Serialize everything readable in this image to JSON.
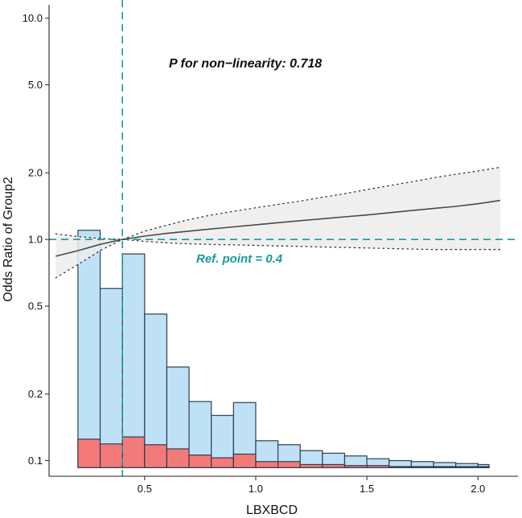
{
  "chart_data": {
    "type": "restricted-cubic-spline-with-histogram",
    "xlabel": "LBXBCD",
    "ylabel": "Odds Ratio of Group2",
    "xlim": [
      0.07,
      2.18
    ],
    "ylim_log": [
      0.085,
      11.5
    ],
    "x_ticks": [
      0.5,
      1.0,
      1.5,
      2.0
    ],
    "x_tick_labels": [
      "0.5",
      "1.0",
      "1.5",
      "2.0"
    ],
    "y_ticks": [
      0.1,
      0.2,
      0.5,
      1.0,
      2.0,
      5.0,
      10.0
    ],
    "y_tick_labels": [
      "0.1",
      "0.2",
      "0.5",
      "1.0",
      "2.0",
      "5.0",
      "10.0"
    ],
    "ref_line_y": 1.0,
    "ref_point": 0.4,
    "p_text": "P for non−linearity: 0.718",
    "ref_text": "Ref. point = 0.4",
    "colors": {
      "line": "#4a4a4a",
      "ci_fill": "#ececec",
      "ci_border": "#333333",
      "ref": "#1a9a9a",
      "bar_total": "#bfe1f6",
      "bar_group2": "#f47a7a",
      "bar_border": "#2f3f4f",
      "axis": "#222222"
    },
    "curve": {
      "x": [
        0.1,
        0.2,
        0.3,
        0.4,
        0.5,
        0.6,
        0.7,
        0.8,
        0.9,
        1.0,
        1.1,
        1.2,
        1.3,
        1.4,
        1.5,
        1.6,
        1.7,
        1.8,
        1.9,
        2.0,
        2.1
      ],
      "or": [
        0.84,
        0.89,
        0.95,
        1.0,
        1.035,
        1.065,
        1.09,
        1.115,
        1.14,
        1.165,
        1.19,
        1.215,
        1.24,
        1.265,
        1.29,
        1.32,
        1.35,
        1.38,
        1.41,
        1.45,
        1.5
      ],
      "lower": [
        0.67,
        0.77,
        0.89,
        1.0,
        0.98,
        0.965,
        0.955,
        0.95,
        0.945,
        0.94,
        0.935,
        0.93,
        0.925,
        0.92,
        0.915,
        0.91,
        0.905,
        0.9,
        0.9,
        0.9,
        0.9
      ],
      "upper": [
        1.06,
        1.03,
        1.01,
        1.0,
        1.09,
        1.16,
        1.23,
        1.29,
        1.34,
        1.39,
        1.44,
        1.49,
        1.55,
        1.61,
        1.68,
        1.75,
        1.82,
        1.9,
        1.97,
        2.04,
        2.12
      ]
    },
    "histogram": {
      "bin_edges": [
        0.2,
        0.3,
        0.4,
        0.5,
        0.6,
        0.7,
        0.8,
        0.9,
        1.0,
        1.1,
        1.2,
        1.3,
        1.4,
        1.5,
        1.6,
        1.7,
        1.8,
        1.9,
        2.0,
        2.05
      ],
      "total_height_or": [
        1.1,
        0.6,
        0.86,
        0.46,
        0.265,
        0.185,
        0.16,
        0.183,
        0.123,
        0.118,
        0.111,
        0.108,
        0.105,
        0.102,
        0.1,
        0.099,
        0.098,
        0.097,
        0.096
      ],
      "group2_height_or": [
        0.125,
        0.119,
        0.128,
        0.118,
        0.113,
        0.106,
        0.103,
        0.107,
        0.099,
        0.099,
        0.096,
        0.096,
        0.095,
        0.095,
        0.094,
        0.094,
        0.094,
        0.094,
        0.094
      ],
      "baseline_or": 0.093
    }
  }
}
